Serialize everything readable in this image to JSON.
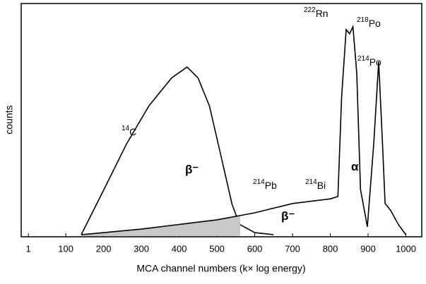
{
  "chart_data": {
    "type": "line",
    "x_label": "MCA channel numbers (k× log energy)",
    "y_label": "counts",
    "xlim": [
      -18,
      1042
    ],
    "ylim": [
      0,
      100
    ],
    "xticks": [
      1,
      100,
      200,
      300,
      400,
      500,
      600,
      700,
      800,
      900,
      1000
    ],
    "series": [
      {
        "color": "#000000",
        "x": [
          141,
          200,
          260,
          320,
          380,
          421,
          450,
          480,
          510,
          540,
          560,
          600,
          650
        ],
        "values": [
          0.6,
          19.7,
          39.4,
          56,
          68,
          72.7,
          68,
          56,
          35,
          13.6,
          5,
          1.5,
          0.6
        ]
      },
      {
        "color": "#000000",
        "x": [
          141,
          300,
          400,
          500,
          600,
          700,
          800,
          820,
          830,
          842,
          851,
          860,
          870,
          880,
          898,
          915,
          928,
          938,
          945,
          960,
          980,
          1000
        ],
        "values": [
          0.6,
          3,
          5,
          7,
          10,
          14,
          16,
          17,
          60,
          88.8,
          87,
          90,
          70,
          20,
          4,
          40,
          75,
          40,
          14,
          11,
          5,
          0.6
        ]
      }
    ],
    "annotations": [
      {
        "mass": "14",
        "symbol": "C"
      },
      {
        "symbol": "β⁻"
      },
      {
        "mass": "214",
        "symbol": "Pb"
      },
      {
        "mass": "214",
        "symbol": "Bi"
      },
      {
        "symbol": "β⁻"
      },
      {
        "symbol": "α"
      },
      {
        "mass": "222",
        "symbol": "Rn"
      },
      {
        "mass": "218",
        "symbol": "Po"
      },
      {
        "mass": "214",
        "symbol": "Po"
      }
    ]
  }
}
